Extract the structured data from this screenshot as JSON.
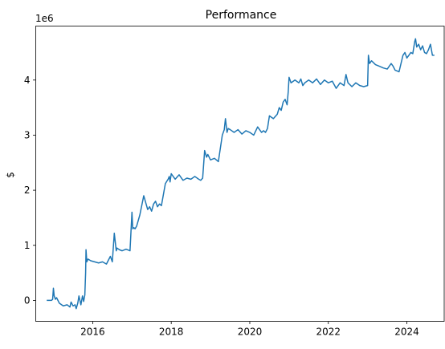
{
  "chart_data": {
    "type": "line",
    "title": "Performance",
    "xlabel": "",
    "ylabel": "$",
    "y_offset_text": "1e6",
    "xlim": [
      2014.55,
      2024.95
    ],
    "ylim": [
      -0.38,
      4.98
    ],
    "x_ticks": [
      2016,
      2018,
      2020,
      2022,
      2024
    ],
    "x_tick_labels": [
      "2016",
      "2018",
      "2020",
      "2022",
      "2024"
    ],
    "y_ticks": [
      0,
      1,
      2,
      3,
      4
    ],
    "y_tick_labels": [
      "0",
      "1",
      "2",
      "3",
      "4"
    ],
    "grid": false,
    "legend": "none",
    "color": "#1f77b4",
    "series": [
      {
        "x": [
          2014.83,
          2014.95,
          2014.98,
          2015.0,
          2015.02,
          2015.05,
          2015.08,
          2015.15,
          2015.25,
          2015.35,
          2015.42,
          2015.45,
          2015.5,
          2015.55,
          2015.58,
          2015.62,
          2015.65,
          2015.7,
          2015.74,
          2015.77,
          2015.8,
          2015.82,
          2015.83,
          2015.85,
          2015.88,
          2015.95,
          2016.05,
          2016.15,
          2016.25,
          2016.35,
          2016.45,
          2016.5,
          2016.55,
          2016.6,
          2016.62,
          2016.68,
          2016.75,
          2016.85,
          2016.95,
          2017.0,
          2017.02,
          2017.05,
          2017.08,
          2017.12,
          2017.2,
          2017.3,
          2017.4,
          2017.45,
          2017.5,
          2017.55,
          2017.6,
          2017.65,
          2017.7,
          2017.75,
          2017.85,
          2017.92,
          2017.95,
          2017.97,
          2018.0,
          2018.05,
          2018.1,
          2018.2,
          2018.3,
          2018.4,
          2018.5,
          2018.6,
          2018.7,
          2018.75,
          2018.8,
          2018.85,
          2018.9,
          2018.93,
          2019.0,
          2019.1,
          2019.2,
          2019.3,
          2019.35,
          2019.38,
          2019.42,
          2019.45,
          2019.5,
          2019.6,
          2019.7,
          2019.8,
          2019.9,
          2020.0,
          2020.1,
          2020.2,
          2020.3,
          2020.35,
          2020.4,
          2020.45,
          2020.5,
          2020.6,
          2020.7,
          2020.75,
          2020.8,
          2020.85,
          2020.9,
          2020.95,
          2020.98,
          2021.0,
          2021.05,
          2021.15,
          2021.25,
          2021.3,
          2021.35,
          2021.4,
          2021.5,
          2021.6,
          2021.7,
          2021.8,
          2021.9,
          2022.0,
          2022.1,
          2022.2,
          2022.3,
          2022.4,
          2022.45,
          2022.5,
          2022.6,
          2022.7,
          2022.8,
          2022.9,
          2023.0,
          2023.02,
          2023.05,
          2023.1,
          2023.2,
          2023.3,
          2023.4,
          2023.5,
          2023.6,
          2023.65,
          2023.7,
          2023.8,
          2023.9,
          2023.95,
          2024.0,
          2024.05,
          2024.1,
          2024.15,
          2024.2,
          2024.22,
          2024.25,
          2024.3,
          2024.35,
          2024.4,
          2024.45,
          2024.5,
          2024.55,
          2024.6,
          2024.65,
          2024.7
        ],
        "y": [
          0.0,
          0.0,
          0.02,
          0.22,
          0.08,
          0.02,
          0.05,
          -0.05,
          -0.1,
          -0.08,
          -0.12,
          -0.03,
          -0.1,
          -0.08,
          -0.15,
          -0.05,
          0.08,
          -0.08,
          0.08,
          -0.02,
          0.1,
          0.5,
          0.92,
          0.7,
          0.75,
          0.72,
          0.7,
          0.68,
          0.7,
          0.66,
          0.8,
          0.7,
          1.22,
          0.9,
          0.95,
          0.92,
          0.9,
          0.93,
          0.9,
          1.6,
          1.3,
          1.32,
          1.3,
          1.35,
          1.55,
          1.9,
          1.65,
          1.7,
          1.62,
          1.75,
          1.8,
          1.7,
          1.75,
          1.72,
          2.12,
          2.2,
          2.25,
          2.15,
          2.3,
          2.25,
          2.2,
          2.28,
          2.18,
          2.22,
          2.2,
          2.25,
          2.2,
          2.18,
          2.22,
          2.72,
          2.6,
          2.65,
          2.55,
          2.58,
          2.52,
          3.0,
          3.1,
          3.3,
          3.05,
          3.12,
          3.1,
          3.05,
          3.1,
          3.02,
          3.08,
          3.05,
          3.0,
          3.15,
          3.05,
          3.08,
          3.05,
          3.12,
          3.35,
          3.3,
          3.38,
          3.5,
          3.45,
          3.6,
          3.65,
          3.55,
          3.8,
          4.05,
          3.95,
          4.0,
          3.95,
          4.02,
          3.9,
          3.95,
          4.0,
          3.95,
          4.02,
          3.92,
          4.0,
          3.95,
          3.98,
          3.85,
          3.95,
          3.9,
          4.1,
          3.95,
          3.88,
          3.95,
          3.9,
          3.88,
          3.9,
          4.45,
          4.3,
          4.35,
          4.28,
          4.25,
          4.22,
          4.2,
          4.3,
          4.25,
          4.18,
          4.15,
          4.45,
          4.5,
          4.4,
          4.45,
          4.5,
          4.48,
          4.7,
          4.75,
          4.6,
          4.65,
          4.55,
          4.62,
          4.5,
          4.48,
          4.55,
          4.65,
          4.45,
          4.45
        ]
      }
    ]
  }
}
